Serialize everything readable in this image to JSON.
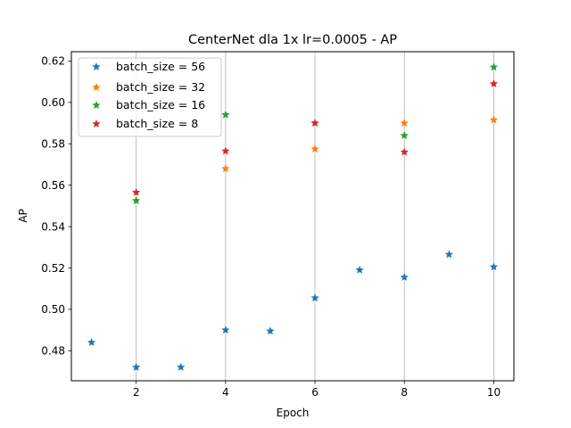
{
  "chart_data": {
    "type": "scatter",
    "title": "CenterNet dla 1x lr=0.0005 - AP",
    "xlabel": "Epoch",
    "ylabel": "AP",
    "xlim": [
      0.55,
      10.45
    ],
    "ylim": [
      0.4655,
      0.6245
    ],
    "xticks": [
      2,
      4,
      6,
      8,
      10
    ],
    "yticks": [
      0.48,
      0.5,
      0.52,
      0.54,
      0.56,
      0.58,
      0.6,
      0.62
    ],
    "ytick_labels": [
      "0.48",
      "0.50",
      "0.52",
      "0.54",
      "0.56",
      "0.58",
      "0.60",
      "0.62"
    ],
    "grid": "x",
    "legend_position": "top-left",
    "marker": "star",
    "series": [
      {
        "name": "batch_size = 56",
        "color": "#1f77b4",
        "points": [
          {
            "x": 1,
            "y": 0.484
          },
          {
            "x": 2,
            "y": 0.472
          },
          {
            "x": 3,
            "y": 0.472
          },
          {
            "x": 4,
            "y": 0.49
          },
          {
            "x": 5,
            "y": 0.4895
          },
          {
            "x": 6,
            "y": 0.5055
          },
          {
            "x": 7,
            "y": 0.519
          },
          {
            "x": 8,
            "y": 0.5155
          },
          {
            "x": 9,
            "y": 0.5265
          },
          {
            "x": 10,
            "y": 0.5205
          }
        ]
      },
      {
        "name": "batch_size = 32",
        "color": "#ff7f0e",
        "points": [
          {
            "x": 2,
            "y": 0.5525
          },
          {
            "x": 4,
            "y": 0.568
          },
          {
            "x": 6,
            "y": 0.5775
          },
          {
            "x": 8,
            "y": 0.59
          },
          {
            "x": 10,
            "y": 0.5915
          }
        ]
      },
      {
        "name": "batch_size = 16",
        "color": "#2ca02c",
        "points": [
          {
            "x": 2,
            "y": 0.5525
          },
          {
            "x": 4,
            "y": 0.594
          },
          {
            "x": 6,
            "y": 0.59
          },
          {
            "x": 8,
            "y": 0.584
          },
          {
            "x": 10,
            "y": 0.617
          }
        ]
      },
      {
        "name": "batch_size = 8",
        "color": "#d62728",
        "points": [
          {
            "x": 2,
            "y": 0.5565
          },
          {
            "x": 4,
            "y": 0.5765
          },
          {
            "x": 6,
            "y": 0.59
          },
          {
            "x": 8,
            "y": 0.576
          },
          {
            "x": 10,
            "y": 0.609
          }
        ]
      }
    ]
  }
}
